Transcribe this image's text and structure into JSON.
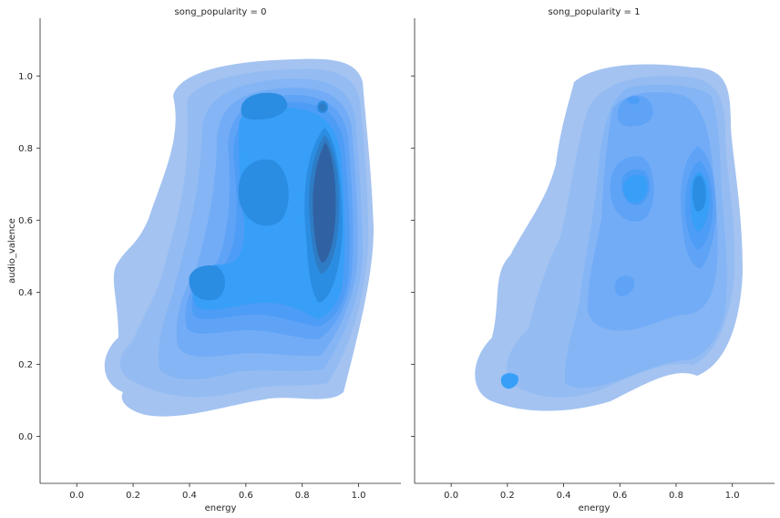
{
  "chart_data": [
    {
      "type": "kde-contour",
      "title": "song_popularity = 0",
      "xlabel": "energy",
      "ylabel": "audio_valence",
      "xlim": [
        -0.13,
        1.15
      ],
      "ylim": [
        -0.13,
        1.16
      ],
      "xticks": [
        "0.0",
        "0.2",
        "0.4",
        "0.6",
        "0.8",
        "1.0"
      ],
      "yticks": [
        "0.0",
        "0.2",
        "0.4",
        "0.6",
        "0.8",
        "1.0"
      ],
      "density_modes": [
        {
          "x": 0.88,
          "y": 0.67,
          "peak": 1.0
        },
        {
          "x": 0.88,
          "y": 0.92,
          "peak": 0.9
        },
        {
          "x": 0.66,
          "y": 0.93,
          "peak": 0.85
        },
        {
          "x": 0.65,
          "y": 0.7,
          "peak": 0.75
        },
        {
          "x": 0.48,
          "y": 0.41,
          "peak": 0.62
        },
        {
          "x": 0.48,
          "y": 0.17,
          "peak": 0.38
        },
        {
          "x": 0.2,
          "y": 0.15,
          "peak": 0.3
        }
      ]
    },
    {
      "type": "kde-contour",
      "title": "song_popularity = 1",
      "xlabel": "energy",
      "ylabel": "",
      "xlim": [
        -0.13,
        1.15
      ],
      "ylim": [
        -0.13,
        1.16
      ],
      "xticks": [
        "0.0",
        "0.2",
        "0.4",
        "0.6",
        "0.8",
        "1.0"
      ],
      "yticks": [],
      "density_modes": [
        {
          "x": 0.9,
          "y": 0.68,
          "peak": 0.8
        },
        {
          "x": 0.67,
          "y": 0.69,
          "peak": 0.62
        },
        {
          "x": 0.67,
          "y": 0.93,
          "peak": 0.48
        },
        {
          "x": 0.63,
          "y": 0.41,
          "peak": 0.42
        },
        {
          "x": 0.22,
          "y": 0.15,
          "peak": 0.35
        },
        {
          "x": 0.9,
          "y": 0.42,
          "peak": 0.3
        }
      ]
    }
  ],
  "colors": {
    "level_fills": [
      "#a4c3f1",
      "#94bcf3",
      "#85b5f4",
      "#73acf6",
      "#5fa3f7",
      "#4d9cf6",
      "#379ff7",
      "#2b8de2",
      "#2e7cc5",
      "#3062a3"
    ],
    "axis": "#262626",
    "background": "#ffffff"
  }
}
